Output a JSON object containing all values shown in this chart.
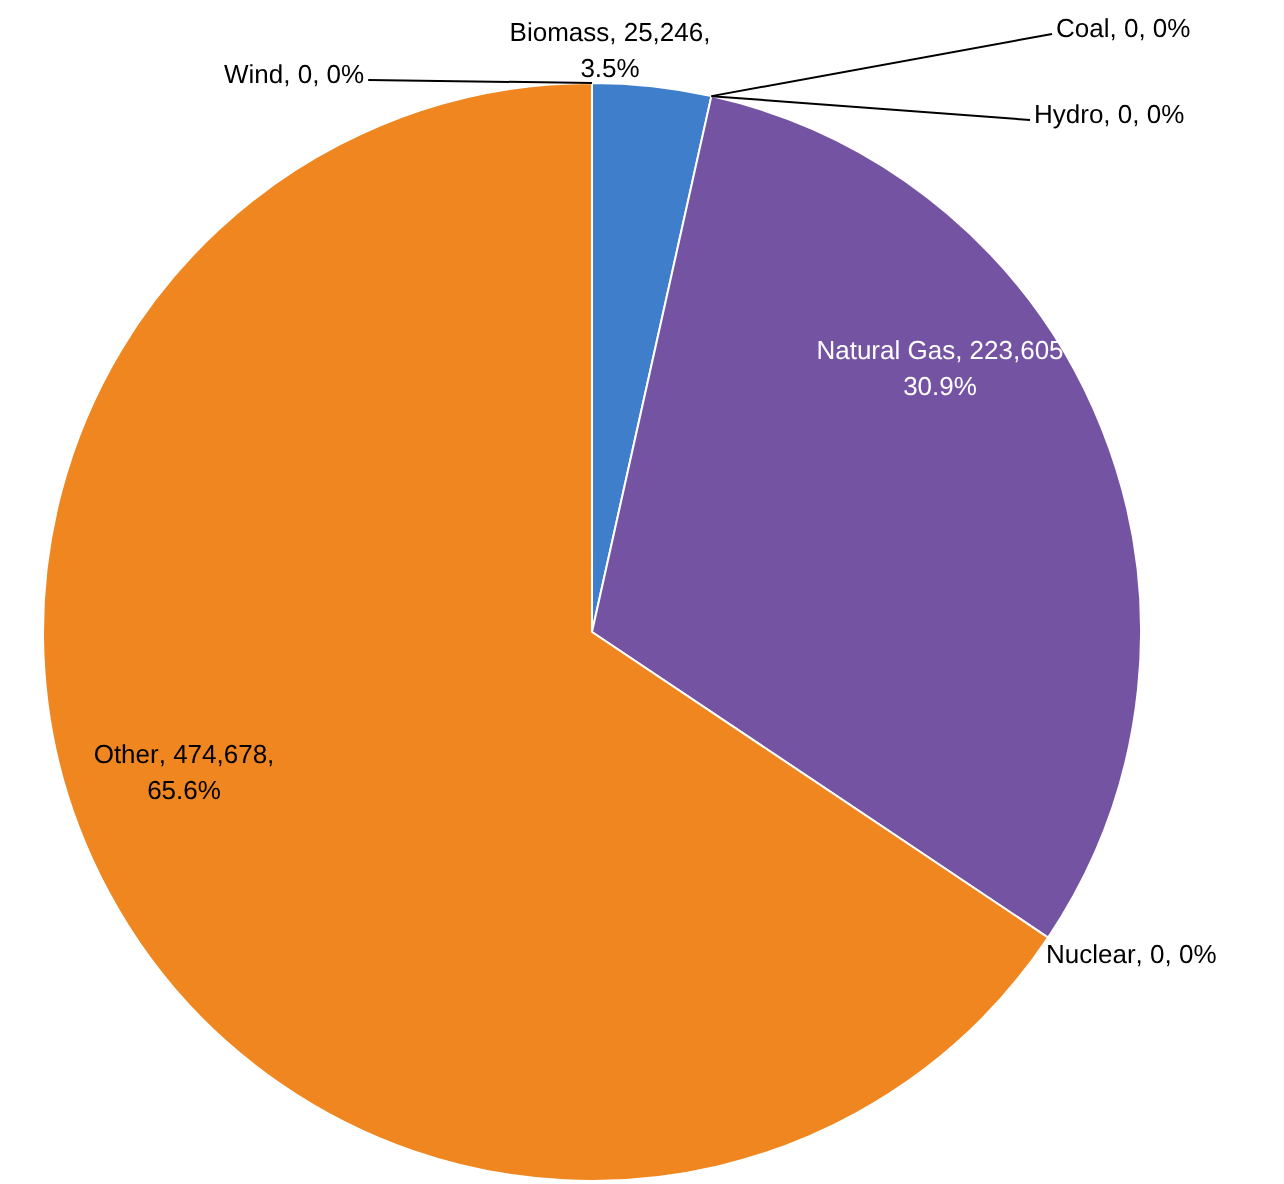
{
  "chart_data": {
    "type": "pie",
    "categories": [
      "Biomass",
      "Coal",
      "Hydro",
      "Natural Gas",
      "Nuclear",
      "Other",
      "Wind"
    ],
    "values": [
      25246,
      0,
      0,
      223605,
      0,
      474678,
      0
    ],
    "colors": [
      "#3f7ecb",
      "#a5a5a5",
      "#4bacc6",
      "#7453a2",
      "#c0504d",
      "#f0861f",
      "#9bbb59"
    ],
    "value_labels": [
      ", 25,246, 3.5%",
      ", 0, 0%",
      ", 0, 0%",
      ", 223,605 30.9%",
      ", 0, 0%",
      ", 474,678, 65.6%",
      ", 0, 0%"
    ],
    "legend": false
  }
}
